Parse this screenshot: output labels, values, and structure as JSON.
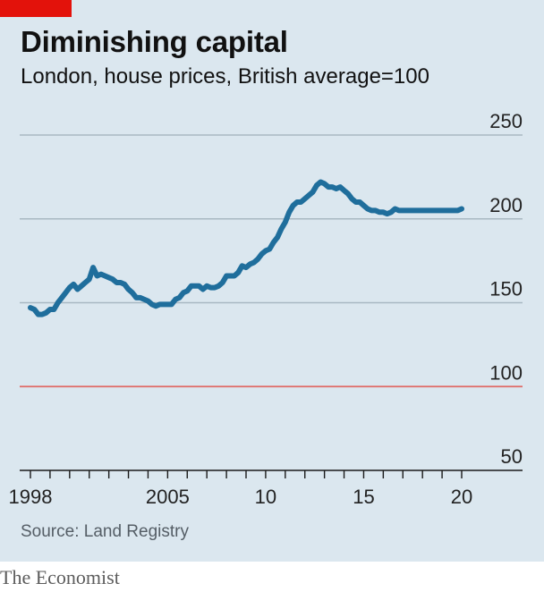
{
  "header": {
    "title": "Diminishing capital",
    "subtitle": "London, house prices, British average=100"
  },
  "footer": {
    "source": "Source: Land Registry",
    "brand": "The Economist"
  },
  "colors": {
    "background": "#dbe7ef",
    "series": "#1f6e9c",
    "baseline": "#e06a66",
    "grid": "#a9b8c2",
    "brand_accent": "#e3120b"
  },
  "chart_data": {
    "type": "line",
    "title": "Diminishing capital",
    "subtitle": "London, house prices, British average=100",
    "ylim": [
      50,
      250
    ],
    "y_ticks": [
      50,
      100,
      150,
      200,
      250
    ],
    "y_tick_labels": [
      "50",
      "100",
      "150",
      "200",
      "250"
    ],
    "xlim": [
      1998,
      2021
    ],
    "x_ticks": [
      1998,
      2005,
      2010,
      2015,
      2020
    ],
    "x_tick_labels": [
      "1998",
      "2005",
      "10",
      "15",
      "20"
    ],
    "reference_line": 100,
    "grid": true,
    "series": [
      {
        "x": [
          1998.0,
          1998.2,
          1998.4,
          1998.6,
          1998.8,
          1999.0,
          1999.2,
          1999.4,
          1999.6,
          1999.8,
          2000.0,
          2000.2,
          2000.4,
          2000.6,
          2000.8,
          2001.0,
          2001.2,
          2001.4,
          2001.6,
          2001.8,
          2002.0,
          2002.2,
          2002.4,
          2002.6,
          2002.8,
          2003.0,
          2003.2,
          2003.4,
          2003.6,
          2003.8,
          2004.0,
          2004.2,
          2004.4,
          2004.6,
          2004.8,
          2005.0,
          2005.2,
          2005.4,
          2005.6,
          2005.8,
          2006.0,
          2006.2,
          2006.4,
          2006.6,
          2006.8,
          2007.0,
          2007.2,
          2007.4,
          2007.6,
          2007.8,
          2008.0,
          2008.2,
          2008.4,
          2008.6,
          2008.8,
          2009.0,
          2009.2,
          2009.4,
          2009.6,
          2009.8,
          2010.0,
          2010.2,
          2010.4,
          2010.6,
          2010.8,
          2011.0,
          2011.2,
          2011.4,
          2011.6,
          2011.8,
          2012.0,
          2012.2,
          2012.4,
          2012.6,
          2012.8,
          2013.0,
          2013.2,
          2013.4,
          2013.6,
          2013.8,
          2014.0,
          2014.2,
          2014.4,
          2014.6,
          2014.8,
          2015.0,
          2015.2,
          2015.4,
          2015.6,
          2015.8,
          2016.0,
          2016.2,
          2016.4,
          2016.6,
          2016.8,
          2017.0,
          2017.2,
          2017.4,
          2017.6,
          2017.8,
          2018.0,
          2018.2,
          2018.4,
          2018.6,
          2018.8,
          2019.0,
          2019.2,
          2019.4,
          2019.6,
          2019.8,
          2020.0
        ],
        "y": [
          147,
          146,
          143,
          143,
          144,
          146,
          146,
          150,
          153,
          156,
          159,
          161,
          158,
          160,
          162,
          164,
          171,
          166,
          167,
          166,
          165,
          164,
          162,
          162,
          161,
          158,
          156,
          153,
          153,
          152,
          151,
          149,
          148,
          149,
          149,
          149,
          149,
          152,
          153,
          156,
          157,
          160,
          160,
          160,
          158,
          160,
          159,
          159,
          160,
          162,
          166,
          166,
          166,
          168,
          172,
          171,
          173,
          174,
          176,
          179,
          181,
          182,
          186,
          189,
          194,
          198,
          204,
          208,
          210,
          210,
          212,
          214,
          216,
          220,
          222,
          221,
          219,
          219,
          218,
          219,
          217,
          215,
          212,
          210,
          210,
          208,
          206,
          205,
          205,
          204,
          204,
          203,
          204,
          206,
          205,
          205,
          205,
          205,
          205,
          205,
          205,
          205,
          205,
          205,
          205,
          205,
          205,
          205,
          205,
          205,
          206
        ]
      }
    ]
  }
}
